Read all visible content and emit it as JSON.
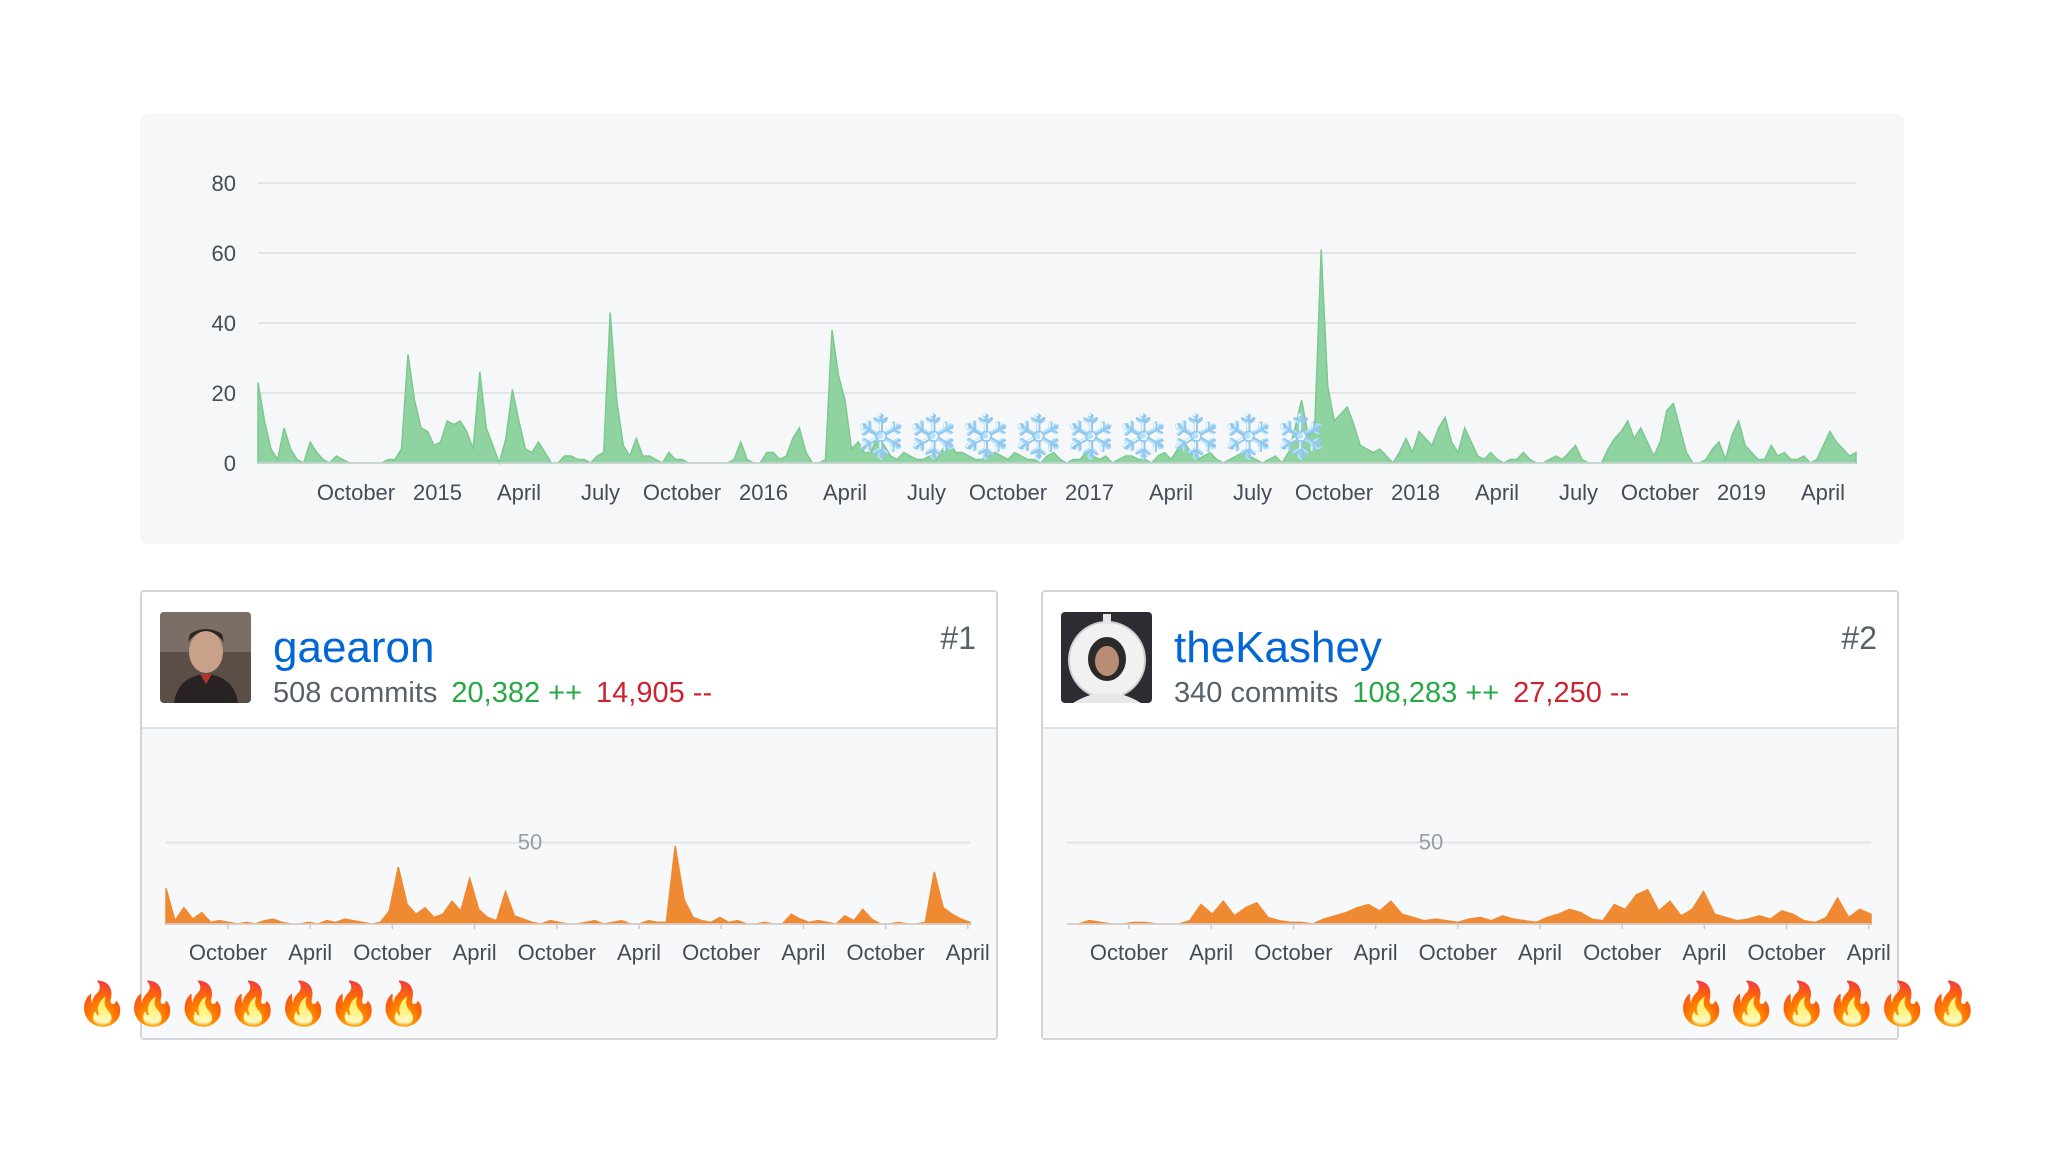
{
  "colors": {
    "main_fill": "#8fd3a0",
    "main_stroke": "#7cc891",
    "contrib_fill": "#f08a32",
    "link": "#0366d6",
    "additions": "#28a745",
    "deletions": "#cb2431",
    "grid": "#e1e4e8"
  },
  "chart_data": [
    {
      "type": "area",
      "title": "",
      "ylim": [
        0,
        80
      ],
      "y_ticks": [
        "0",
        "20",
        "40",
        "60",
        "80"
      ],
      "x_ticks": [
        "October",
        "2015",
        "April",
        "July",
        "October",
        "2016",
        "April",
        "July",
        "October",
        "2017",
        "April",
        "July",
        "October",
        "2018",
        "April",
        "July",
        "October",
        "2019",
        "April"
      ],
      "grid": true,
      "series": [
        {
          "values": [
            23,
            12,
            4,
            1,
            10,
            4,
            1,
            0,
            6,
            3,
            1,
            0,
            2,
            1,
            0,
            0,
            0,
            0,
            0,
            0,
            1,
            1,
            4,
            31,
            18,
            10,
            9,
            5,
            6,
            12,
            11,
            12,
            9,
            4,
            26,
            10,
            5,
            0,
            7,
            21,
            12,
            4,
            3,
            6,
            3,
            0,
            0,
            2,
            2,
            1,
            1,
            0,
            2,
            3,
            43,
            18,
            5,
            2,
            7,
            2,
            2,
            1,
            0,
            3,
            1,
            1,
            0,
            0,
            0,
            0,
            0,
            0,
            0,
            1,
            6,
            1,
            0,
            0,
            3,
            3,
            1,
            2,
            7,
            10,
            3,
            0,
            0,
            1,
            38,
            25,
            18,
            4,
            6,
            3,
            3,
            8,
            5,
            2,
            1,
            3,
            2,
            1,
            1,
            2,
            1,
            4,
            6,
            3,
            3,
            2,
            1,
            1,
            2,
            3,
            2,
            1,
            3,
            2,
            1,
            1,
            0,
            2,
            3,
            1,
            0,
            1,
            1,
            3,
            2,
            1,
            2,
            0,
            1,
            2,
            2,
            1,
            1,
            0,
            2,
            3,
            1,
            4,
            6,
            3,
            1,
            2,
            3,
            1,
            0,
            1,
            2,
            3,
            2,
            1,
            0,
            1,
            2,
            0,
            3,
            10,
            18,
            8,
            9,
            61,
            22,
            12,
            14,
            16,
            11,
            5,
            4,
            3,
            4,
            2,
            0,
            3,
            7,
            3,
            9,
            7,
            5,
            10,
            13,
            6,
            3,
            10,
            6,
            2,
            1,
            3,
            1,
            0,
            1,
            1,
            3,
            1,
            0,
            0,
            1,
            2,
            1,
            3,
            5,
            1,
            0,
            0,
            0,
            4,
            7,
            9,
            12,
            7,
            10,
            6,
            2,
            6,
            15,
            17,
            10,
            3,
            0,
            0,
            1,
            4,
            6,
            1,
            8,
            12,
            5,
            3,
            1,
            1,
            5,
            2,
            3,
            1,
            1,
            2,
            0,
            1,
            5,
            9,
            6,
            4,
            2,
            3
          ]
        }
      ]
    },
    {
      "type": "area",
      "title": "",
      "y_ticks": [
        "50"
      ],
      "ylim": [
        0,
        110
      ],
      "x_ticks": [
        "October",
        "April",
        "October",
        "April",
        "October",
        "April",
        "October",
        "April",
        "October",
        "April"
      ],
      "grid": true,
      "series": [
        {
          "values": [
            22,
            2,
            10,
            3,
            7,
            1,
            2,
            1,
            0,
            1,
            0,
            2,
            3,
            1,
            0,
            0,
            1,
            0,
            2,
            1,
            3,
            2,
            1,
            0,
            1,
            8,
            35,
            12,
            6,
            10,
            4,
            6,
            14,
            8,
            28,
            9,
            4,
            2,
            20,
            5,
            3,
            1,
            0,
            2,
            1,
            0,
            0,
            1,
            2,
            0,
            1,
            2,
            0,
            0,
            2,
            1,
            1,
            48,
            15,
            4,
            2,
            1,
            4,
            1,
            2,
            0,
            0,
            1,
            0,
            0,
            6,
            3,
            1,
            2,
            1,
            0,
            5,
            2,
            9,
            3,
            0,
            0,
            1,
            0,
            0,
            1,
            32,
            10,
            6,
            3,
            1
          ]
        }
      ]
    },
    {
      "type": "area",
      "title": "",
      "y_ticks": [
        "50"
      ],
      "ylim": [
        0,
        110
      ],
      "x_ticks": [
        "October",
        "April",
        "October",
        "April",
        "October",
        "April",
        "October",
        "April",
        "October",
        "April"
      ],
      "grid": true,
      "series": [
        {
          "values": [
            0,
            0,
            2,
            1,
            0,
            0,
            1,
            1,
            0,
            0,
            0,
            2,
            12,
            6,
            14,
            5,
            10,
            13,
            4,
            2,
            1,
            1,
            0,
            3,
            5,
            7,
            10,
            12,
            8,
            14,
            6,
            4,
            2,
            3,
            2,
            1,
            3,
            4,
            2,
            5,
            3,
            2,
            1,
            4,
            6,
            9,
            7,
            3,
            2,
            12,
            9,
            18,
            21,
            8,
            14,
            5,
            9,
            20,
            6,
            4,
            2,
            3,
            5,
            3,
            8,
            6,
            2,
            1,
            4,
            16,
            4,
            9,
            6
          ]
        }
      ]
    }
  ],
  "main_chart": {
    "snowflakes": [
      "❄️",
      "❄️",
      "❄️",
      "❄️",
      "❄️",
      "❄️",
      "❄️",
      "❄️",
      "❄️"
    ]
  },
  "contributors": [
    {
      "username": "gaearon",
      "commits": "508 commits",
      "additions": "20,382 ++",
      "deletions": "14,905 --",
      "rank": "#1",
      "fires": [
        "🔥",
        "🔥",
        "🔥",
        "🔥",
        "🔥",
        "🔥",
        "🔥"
      ]
    },
    {
      "username": "theKashey",
      "commits": "340 commits",
      "additions": "108,283 ++",
      "deletions": "27,250 --",
      "rank": "#2",
      "fires": [
        "🔥",
        "🔥",
        "🔥",
        "🔥",
        "🔥",
        "🔥"
      ]
    }
  ]
}
